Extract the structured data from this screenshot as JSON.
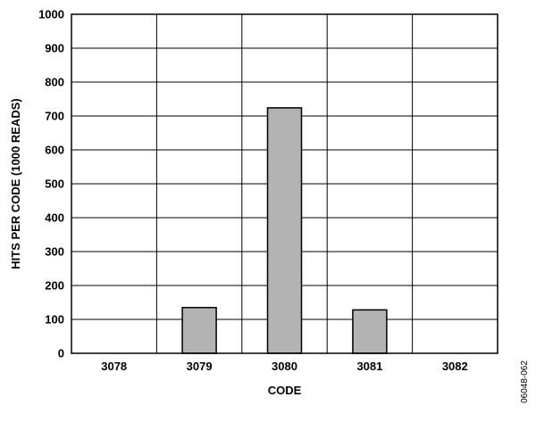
{
  "chart_data": {
    "type": "bar",
    "categories": [
      "3078",
      "3079",
      "3080",
      "3081",
      "3082"
    ],
    "values": [
      0,
      135,
      724,
      128,
      0
    ],
    "xlabel": "CODE",
    "ylabel": "HITS PER CODE (1000 READS)",
    "ylim": [
      0,
      1000
    ],
    "yticks": [
      0,
      100,
      200,
      300,
      400,
      500,
      600,
      700,
      800,
      900,
      1000
    ],
    "grid": true,
    "bar_color": "#b3b3b3",
    "figure_id": "06048-062"
  }
}
